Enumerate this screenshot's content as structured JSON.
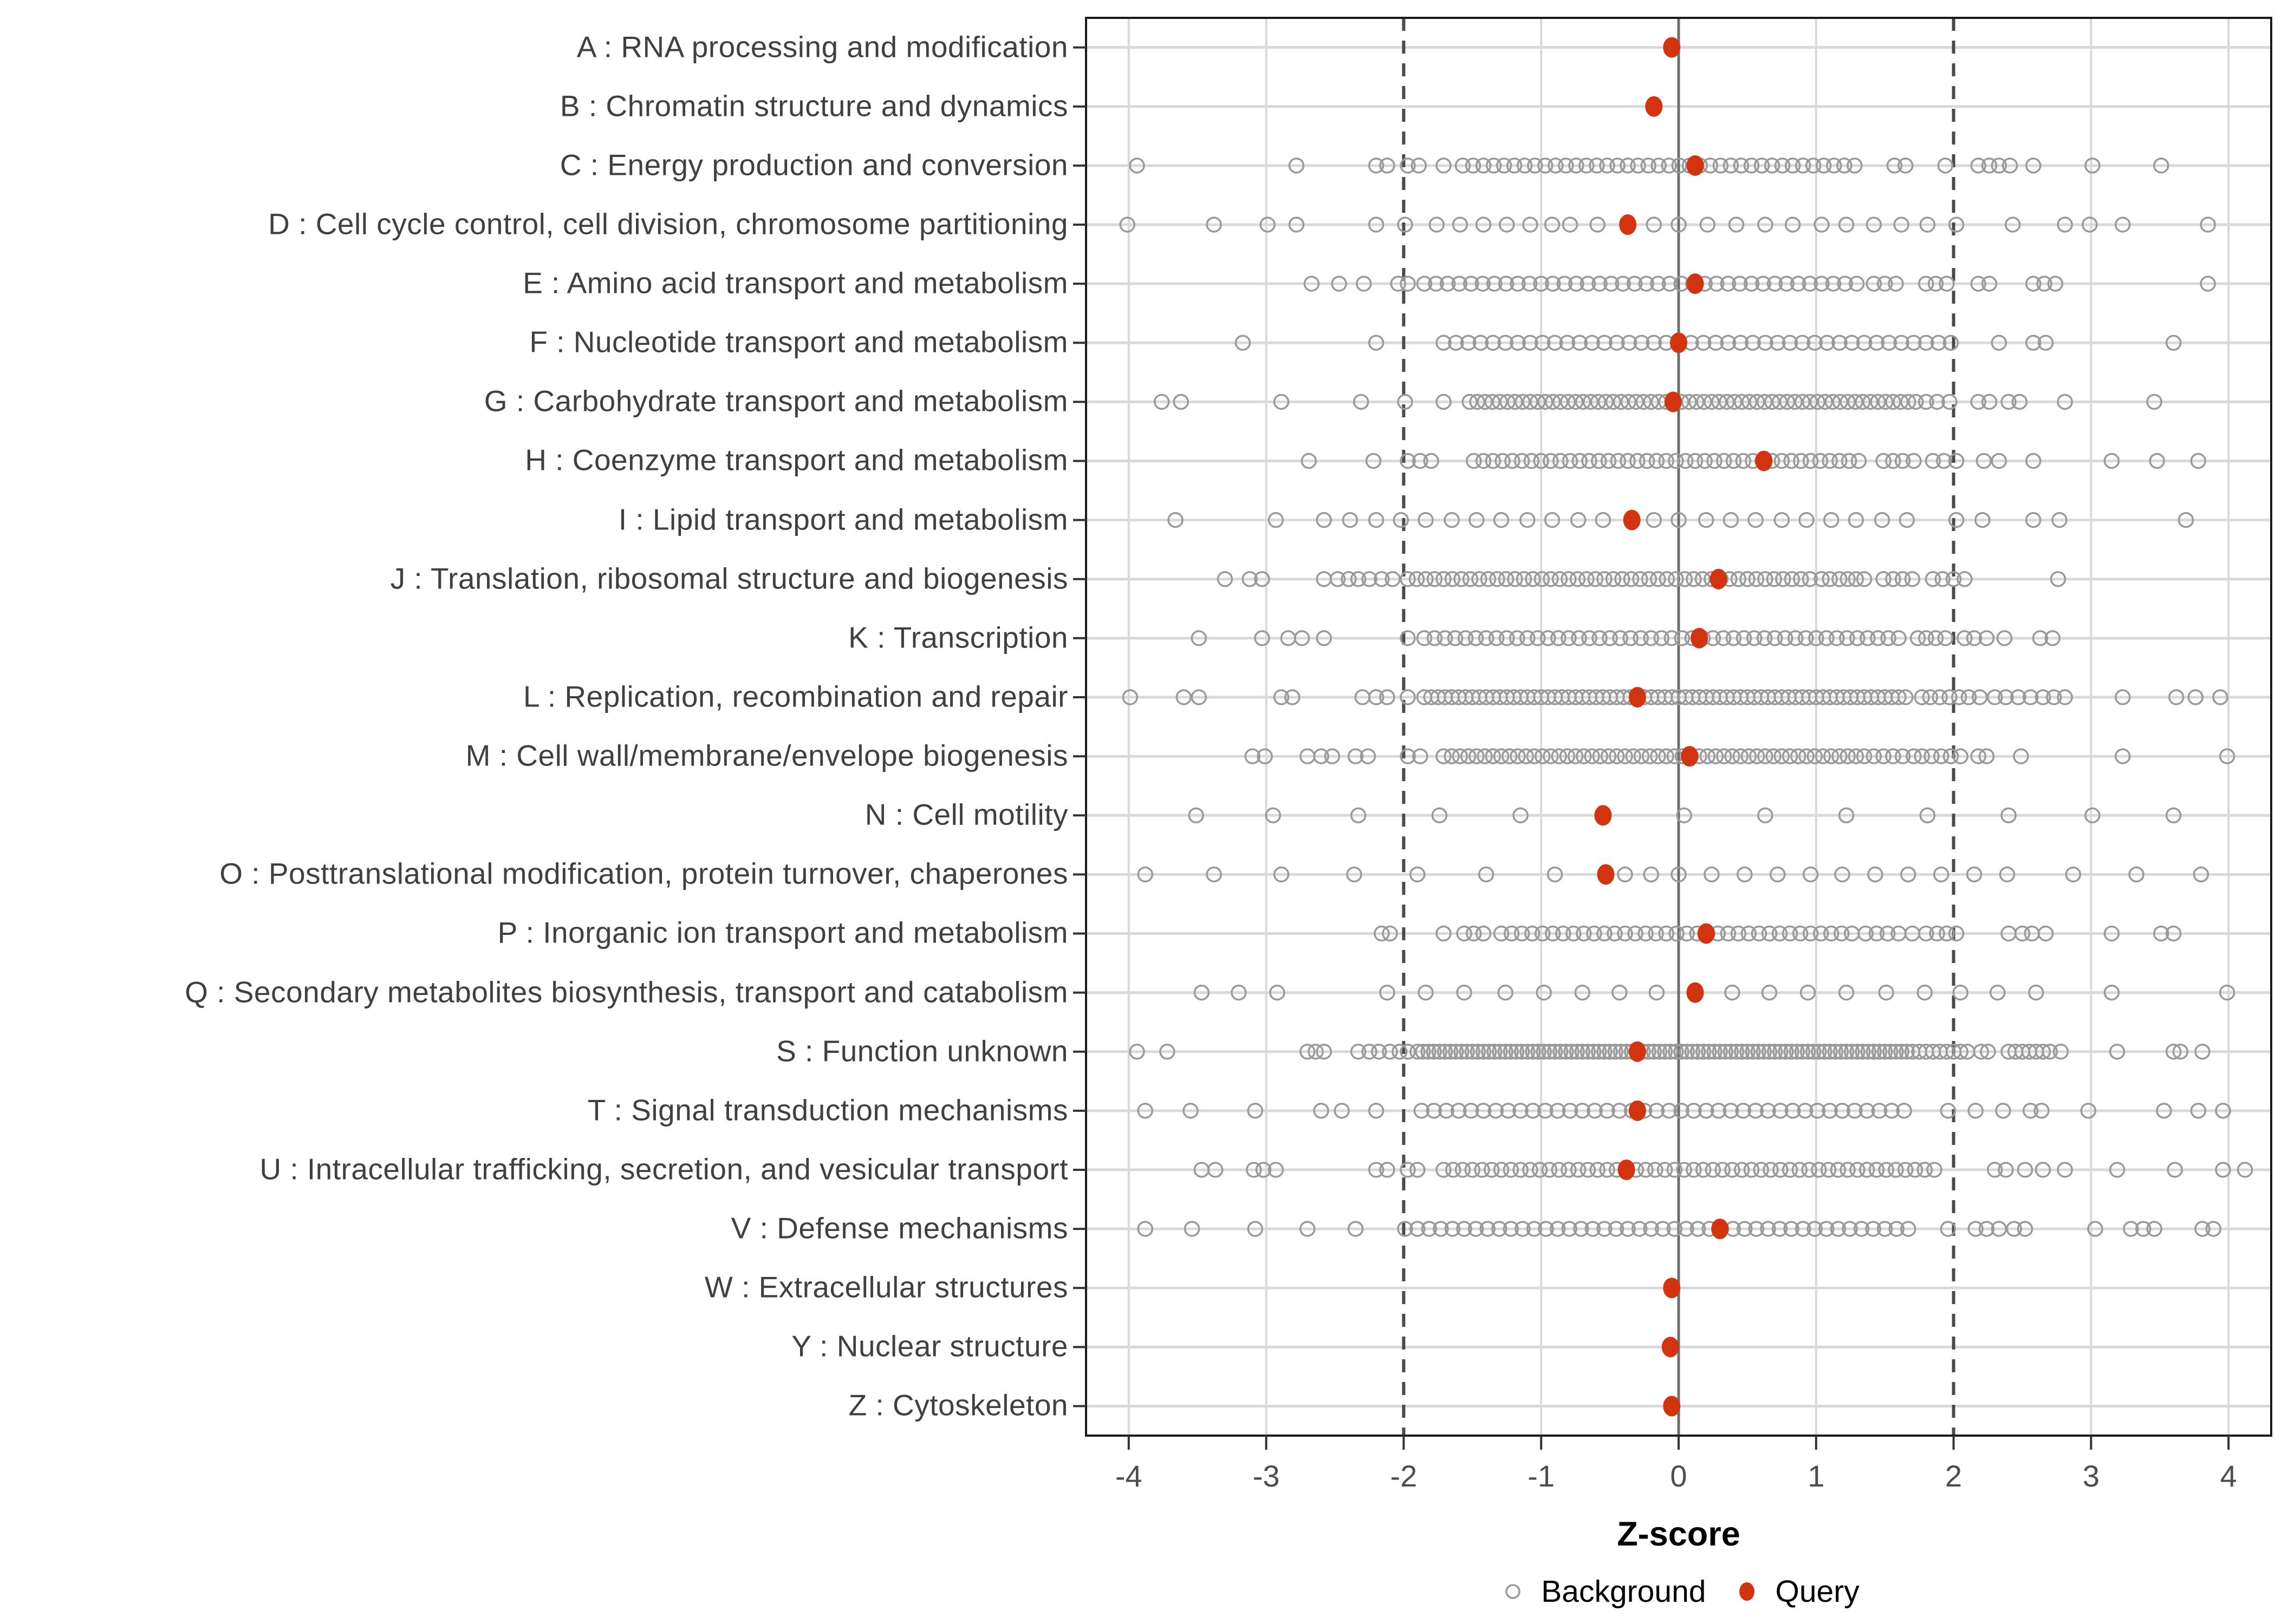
{
  "figure": {
    "x_axis_title": "Z-score",
    "legend": {
      "background_label": "Background",
      "query_label": "Query"
    }
  },
  "colors": {
    "query_point": "#D23410",
    "background_point_stroke": "#9A9A9A",
    "grid_line": "#D9D9D9",
    "zero_line": "#6E6E6E",
    "reference_line": "#4A4A4A",
    "panel_border": "#1A1A1A",
    "axis_tick": "#333333",
    "category_text": "#404040",
    "tick_text": "#4D4D4D"
  },
  "chart_data": {
    "type": "scatter",
    "title": "",
    "xlabel": "Z-score",
    "ylabel": "",
    "xlim": [
      -4.31,
      4.31
    ],
    "x_ticks": [
      -4,
      -3,
      -2,
      -1,
      0,
      1,
      2,
      3,
      4
    ],
    "x_tick_labels": [
      "-4",
      "-3",
      "-2",
      "-1",
      "0",
      "1",
      "2",
      "3",
      "4"
    ],
    "reference_lines_dashed": [
      -2,
      2
    ],
    "zero_line": 0,
    "grid": true,
    "legend_position": "bottom",
    "legend_entries": [
      "Background",
      "Query"
    ],
    "background_encoding": "background arrays contain plain z-values and {from,to,step} inclusive ranges read from the dense point bands",
    "categories": [
      {
        "code": "A",
        "label": "A : RNA processing and modification",
        "query": -0.05,
        "background": []
      },
      {
        "code": "B",
        "label": "B : Chromatin structure and dynamics",
        "query": -0.18,
        "background": []
      },
      {
        "code": "C",
        "label": "C : Energy production and conversion",
        "query": 0.12,
        "background": [
          -3.94,
          -2.78,
          -2.2,
          -2.12,
          -1.97,
          -1.89,
          -1.71,
          {
            "from": -1.57,
            "to": 1.29,
            "step": 0.075
          },
          1.57,
          1.65,
          1.94,
          2.18,
          2.26,
          2.33,
          2.41,
          2.58,
          3.01,
          3.51
        ]
      },
      {
        "code": "D",
        "label": "D : Cell cycle control, cell division, chromosome partitioning",
        "query": -0.37,
        "background": [
          -4.01,
          -3.38,
          -2.99,
          -2.78,
          -2.2,
          -1.99,
          -1.76,
          -1.59,
          -1.42,
          -1.25,
          -1.08,
          -0.92,
          -0.79,
          -0.59,
          -0.18,
          0.0,
          0.21,
          0.42,
          0.63,
          0.83,
          1.04,
          1.22,
          1.42,
          1.62,
          1.81,
          2.02,
          2.43,
          2.81,
          2.99,
          3.23,
          3.85
        ]
      },
      {
        "code": "E",
        "label": "E : Amino acid transport and metabolism",
        "query": 0.12,
        "background": [
          -2.67,
          -2.47,
          -2.29,
          -2.04,
          -1.97,
          {
            "from": -1.85,
            "to": 1.35,
            "step": 0.085
          },
          1.42,
          1.5,
          1.58,
          1.8,
          1.87,
          1.95,
          2.18,
          2.26,
          2.58,
          2.66,
          2.74,
          3.85
        ]
      },
      {
        "code": "F",
        "label": "F : Nucleotide transport and metabolism",
        "query": 0.0,
        "background": [
          -3.17,
          -2.2,
          {
            "from": -1.71,
            "to": 2.0,
            "step": 0.09
          },
          2.33,
          2.58,
          2.67,
          3.6
        ]
      },
      {
        "code": "G",
        "label": "G : Carbohydrate transport and metabolism",
        "query": -0.04,
        "background": [
          -3.76,
          -3.62,
          -2.89,
          -2.31,
          -1.99,
          -1.71,
          {
            "from": -1.52,
            "to": 1.74,
            "step": 0.055
          },
          1.8,
          1.88,
          1.97,
          2.18,
          2.26,
          2.4,
          2.48,
          2.81,
          3.46
        ]
      },
      {
        "code": "H",
        "label": "H : Coenzyme transport and metabolism",
        "query": 0.62,
        "background": [
          -2.69,
          -2.22,
          -1.97,
          -1.88,
          -1.8,
          {
            "from": -1.49,
            "to": 1.35,
            "step": 0.07
          },
          1.49,
          1.56,
          1.63,
          1.71,
          1.85,
          1.93,
          2.02,
          2.22,
          2.33,
          2.58,
          3.15,
          3.48,
          3.78
        ]
      },
      {
        "code": "I",
        "label": "I : Lipid transport and metabolism",
        "query": -0.34,
        "background": [
          -3.66,
          -2.93,
          -2.58,
          -2.39,
          -2.2,
          -2.02,
          -1.84,
          -1.65,
          -1.47,
          -1.29,
          -1.1,
          -0.92,
          -0.73,
          -0.55,
          -0.18,
          0.0,
          0.2,
          0.38,
          0.56,
          0.75,
          0.93,
          1.11,
          1.29,
          1.48,
          1.66,
          2.02,
          2.21,
          2.58,
          2.77,
          3.69
        ]
      },
      {
        "code": "J",
        "label": "J : Translation, ribosomal structure and biogenesis",
        "query": 0.29,
        "background": [
          -3.3,
          -3.12,
          -3.03,
          -2.58,
          -2.48,
          -2.4,
          -2.33,
          -2.25,
          -2.16,
          -2.08,
          {
            "from": -1.97,
            "to": 0.96,
            "step": 0.065
          },
          1.04,
          1.1,
          1.17,
          1.23,
          1.29,
          1.35,
          1.49,
          1.56,
          1.63,
          1.7,
          1.85,
          1.92,
          2.0,
          2.08,
          2.76
        ]
      },
      {
        "code": "K",
        "label": "K : Transcription",
        "query": 0.15,
        "background": [
          -3.49,
          -3.03,
          -2.84,
          -2.74,
          -2.58,
          -1.97,
          {
            "from": -1.85,
            "to": 1.63,
            "step": 0.075
          },
          1.74,
          1.8,
          1.87,
          1.94,
          2.08,
          2.15,
          2.24,
          2.37,
          2.63,
          2.72
        ]
      },
      {
        "code": "L",
        "label": "L : Replication, recombination and repair",
        "query": -0.3,
        "background": [
          -3.99,
          -3.6,
          -3.49,
          -2.89,
          -2.81,
          -2.3,
          -2.2,
          -2.12,
          -1.97,
          {
            "from": -1.85,
            "to": 1.69,
            "step": 0.05
          },
          1.77,
          1.83,
          1.9,
          1.97,
          2.04,
          2.11,
          2.19,
          2.3,
          2.38,
          2.47,
          2.56,
          2.65,
          2.73,
          2.81,
          3.23,
          3.62,
          3.76,
          3.94
        ]
      },
      {
        "code": "M",
        "label": "M : Cell wall/membrane/envelope biogenesis",
        "query": 0.08,
        "background": [
          -3.1,
          -3.01,
          -2.7,
          -2.6,
          -2.52,
          -2.35,
          -2.26,
          -1.97,
          -1.88,
          {
            "from": -1.71,
            "to": 1.29,
            "step": 0.06
          },
          1.35,
          1.42,
          1.49,
          1.56,
          1.63,
          1.71,
          1.77,
          1.84,
          1.91,
          1.98,
          2.05,
          2.18,
          2.24,
          2.49,
          3.23,
          3.99
        ]
      },
      {
        "code": "N",
        "label": "N : Cell motility",
        "query": -0.55,
        "background": [
          -3.51,
          -2.95,
          -2.33,
          -1.74,
          -1.15,
          0.04,
          0.63,
          1.22,
          1.81,
          2.4,
          3.01,
          3.6
        ]
      },
      {
        "code": "O",
        "label": "O : Posttranslational modification, protein turnover, chaperones",
        "query": -0.53,
        "background": [
          -3.88,
          -3.38,
          -2.89,
          -2.36,
          -1.9,
          -1.4,
          -0.9,
          -0.39,
          -0.2,
          0.0,
          0.24,
          0.48,
          0.72,
          0.96,
          1.19,
          1.43,
          1.67,
          1.91,
          2.15,
          2.39,
          2.87,
          3.33,
          3.8
        ]
      },
      {
        "code": "P",
        "label": "P : Inorganic ion transport and metabolism",
        "query": 0.2,
        "background": [
          -2.16,
          -2.1,
          -1.71,
          -1.56,
          -1.49,
          -1.42,
          {
            "from": -1.29,
            "to": 1.29,
            "step": 0.075
          },
          1.36,
          1.44,
          1.52,
          1.6,
          1.7,
          1.8,
          1.88,
          1.95,
          2.02,
          2.4,
          2.5,
          2.57,
          2.67,
          3.15,
          3.51,
          3.6
        ]
      },
      {
        "code": "Q",
        "label": "Q : Secondary metabolites biosynthesis, transport and catabolism",
        "query": 0.12,
        "background": [
          -3.47,
          -3.2,
          -2.92,
          -2.12,
          -1.84,
          -1.56,
          -1.26,
          -0.98,
          -0.7,
          -0.43,
          -0.16,
          0.39,
          0.66,
          0.94,
          1.22,
          1.51,
          1.79,
          2.05,
          2.32,
          2.6,
          3.15,
          3.99
        ]
      },
      {
        "code": "S",
        "label": "S : Function unknown",
        "query": -0.3,
        "background": [
          -3.94,
          -3.72,
          -2.7,
          -2.64,
          -2.58,
          -2.33,
          -2.25,
          -2.18,
          -2.1,
          -2.03,
          -1.97,
          {
            "from": -1.9,
            "to": 1.7,
            "step": 0.04
          },
          1.75,
          1.8,
          1.85,
          1.9,
          1.95,
          2.0,
          2.05,
          2.1,
          2.2,
          2.25,
          2.4,
          2.45,
          2.5,
          2.55,
          2.6,
          2.65,
          2.7,
          2.78,
          3.19,
          3.6,
          3.65,
          3.81
        ]
      },
      {
        "code": "T",
        "label": "T : Signal transduction mechanisms",
        "query": -0.3,
        "background": [
          -3.88,
          -3.55,
          -3.08,
          -2.6,
          -2.45,
          -2.2,
          {
            "from": -1.87,
            "to": 1.71,
            "step": 0.09
          },
          1.96,
          2.16,
          2.36,
          2.56,
          2.64,
          2.98,
          3.53,
          3.78,
          3.96
        ]
      },
      {
        "code": "U",
        "label": "U : Intracellular trafficking, secretion, and vesicular transport",
        "query": -0.38,
        "background": [
          -3.47,
          -3.37,
          -3.09,
          -3.02,
          -2.93,
          -2.2,
          -2.12,
          -1.97,
          -1.9,
          {
            "from": -1.71,
            "to": 1.9,
            "step": 0.07
          },
          2.3,
          2.38,
          2.52,
          2.65,
          2.81,
          3.19,
          3.61,
          3.96,
          4.12
        ]
      },
      {
        "code": "V",
        "label": "V : Defense mechanisms",
        "query": 0.3,
        "background": [
          -3.88,
          -3.54,
          -3.08,
          -2.7,
          -2.35,
          -1.99,
          {
            "from": -1.9,
            "to": 1.7,
            "step": 0.085
          },
          1.96,
          2.16,
          2.24,
          2.33,
          2.44,
          2.52,
          3.03,
          3.29,
          3.38,
          3.46,
          3.81,
          3.89
        ]
      },
      {
        "code": "W",
        "label": "W : Extracellular structures",
        "query": -0.05,
        "background": []
      },
      {
        "code": "Y",
        "label": "Y : Nuclear structure",
        "query": -0.06,
        "background": []
      },
      {
        "code": "Z",
        "label": "Z : Cytoskeleton",
        "query": -0.05,
        "background": []
      }
    ]
  }
}
